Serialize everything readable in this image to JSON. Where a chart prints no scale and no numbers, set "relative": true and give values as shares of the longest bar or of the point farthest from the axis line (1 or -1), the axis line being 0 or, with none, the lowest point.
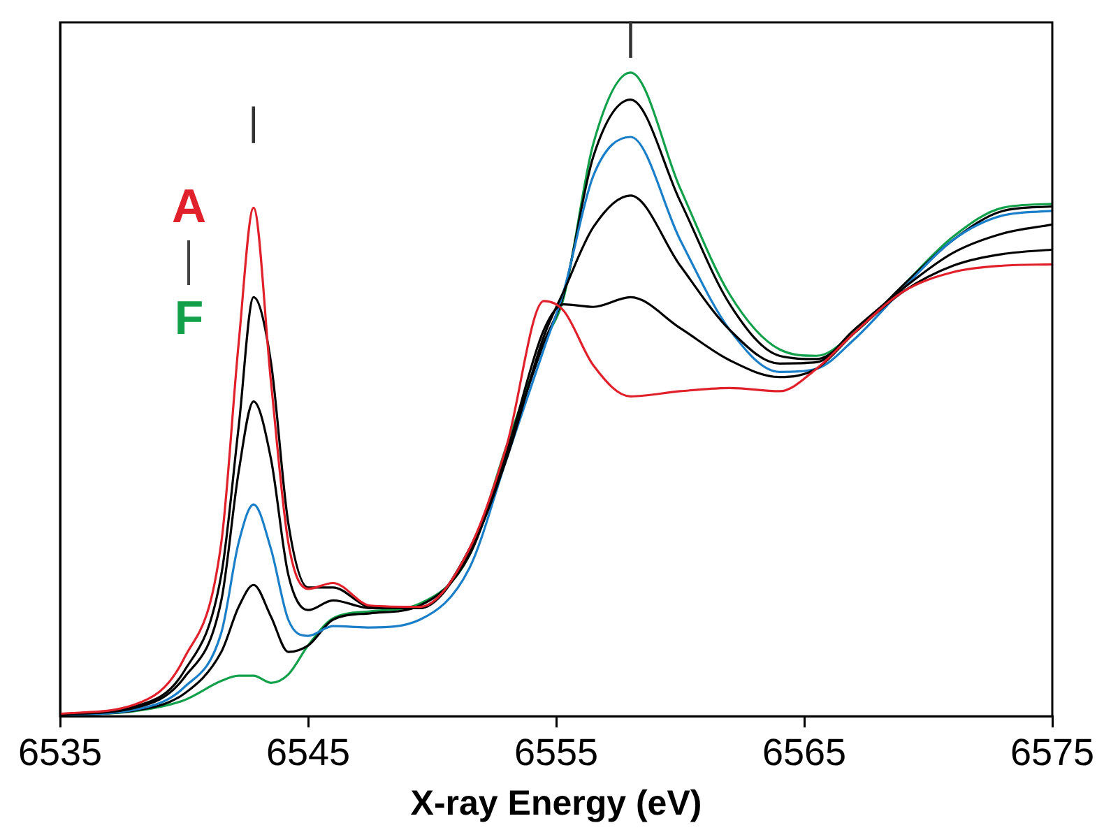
{
  "chart_data": {
    "type": "line",
    "xlabel": "X-ray Energy (eV)",
    "relative": true,
    "tick_labels": "x",
    "grid": false,
    "legend": "top left",
    "marker": "none",
    "line_style": "solid",
    "x": [
      6535,
      6538,
      6540,
      6541.5,
      6542.2,
      6542.8,
      6543.5,
      6544.2,
      6545,
      6546,
      6547.5,
      6549.5,
      6551.5,
      6553,
      6554.5,
      6555.3,
      6556.5,
      6558,
      6560,
      6562,
      6564,
      6565.5,
      6567,
      6569,
      6571,
      6573,
      6575
    ],
    "xlim": [
      6535,
      6575
    ],
    "xticks": [
      6535,
      6545,
      6555,
      6565,
      6575
    ],
    "series": [
      {
        "name": "A",
        "color": "#e0202a",
        "values": [
          0.004,
          0.018,
          0.09,
          0.27,
          0.58,
          0.79,
          0.52,
          0.27,
          0.198,
          0.207,
          0.172,
          0.17,
          0.26,
          0.42,
          0.645,
          0.63,
          0.545,
          0.497,
          0.505,
          0.51,
          0.505,
          0.54,
          0.595,
          0.66,
          0.69,
          0.7,
          0.702
        ]
      },
      {
        "color": "#000000",
        "values": [
          0.003,
          0.015,
          0.07,
          0.22,
          0.45,
          0.651,
          0.55,
          0.3,
          0.2,
          0.2,
          0.17,
          0.168,
          0.26,
          0.41,
          0.6,
          0.64,
          0.636,
          0.651,
          0.603,
          0.553,
          0.527,
          0.54,
          0.595,
          0.66,
          0.7,
          0.718,
          0.725
        ]
      },
      {
        "color": "#000000",
        "values": [
          0.003,
          0.013,
          0.06,
          0.18,
          0.38,
          0.489,
          0.4,
          0.22,
          0.165,
          0.18,
          0.168,
          0.168,
          0.255,
          0.4,
          0.59,
          0.66,
          0.76,
          0.809,
          0.7,
          0.6,
          0.548,
          0.55,
          0.6,
          0.665,
          0.72,
          0.75,
          0.764
        ]
      },
      {
        "color": "#1a7fc8",
        "values": [
          0.002,
          0.01,
          0.045,
          0.13,
          0.27,
          0.329,
          0.26,
          0.15,
          0.125,
          0.14,
          0.138,
          0.15,
          0.23,
          0.4,
          0.57,
          0.66,
          0.84,
          0.9,
          0.74,
          0.6,
          0.535,
          0.54,
          0.585,
          0.665,
          0.74,
          0.778,
          0.785
        ]
      },
      {
        "color": "#000000",
        "values": [
          0.002,
          0.009,
          0.035,
          0.1,
          0.17,
          0.204,
          0.155,
          0.1,
          0.11,
          0.15,
          0.16,
          0.172,
          0.25,
          0.41,
          0.58,
          0.655,
          0.87,
          0.958,
          0.8,
          0.64,
          0.56,
          0.555,
          0.595,
          0.67,
          0.74,
          0.785,
          0.792
        ]
      },
      {
        "name": "F",
        "color": "#12a04a",
        "values": [
          0.002,
          0.008,
          0.025,
          0.055,
          0.063,
          0.063,
          0.052,
          0.065,
          0.11,
          0.152,
          0.163,
          0.175,
          0.25,
          0.42,
          0.58,
          0.65,
          0.89,
          1,
          0.82,
          0.655,
          0.57,
          0.56,
          0.595,
          0.67,
          0.745,
          0.79,
          0.796
        ]
      }
    ],
    "annotations": [
      "|",
      "|"
    ]
  }
}
